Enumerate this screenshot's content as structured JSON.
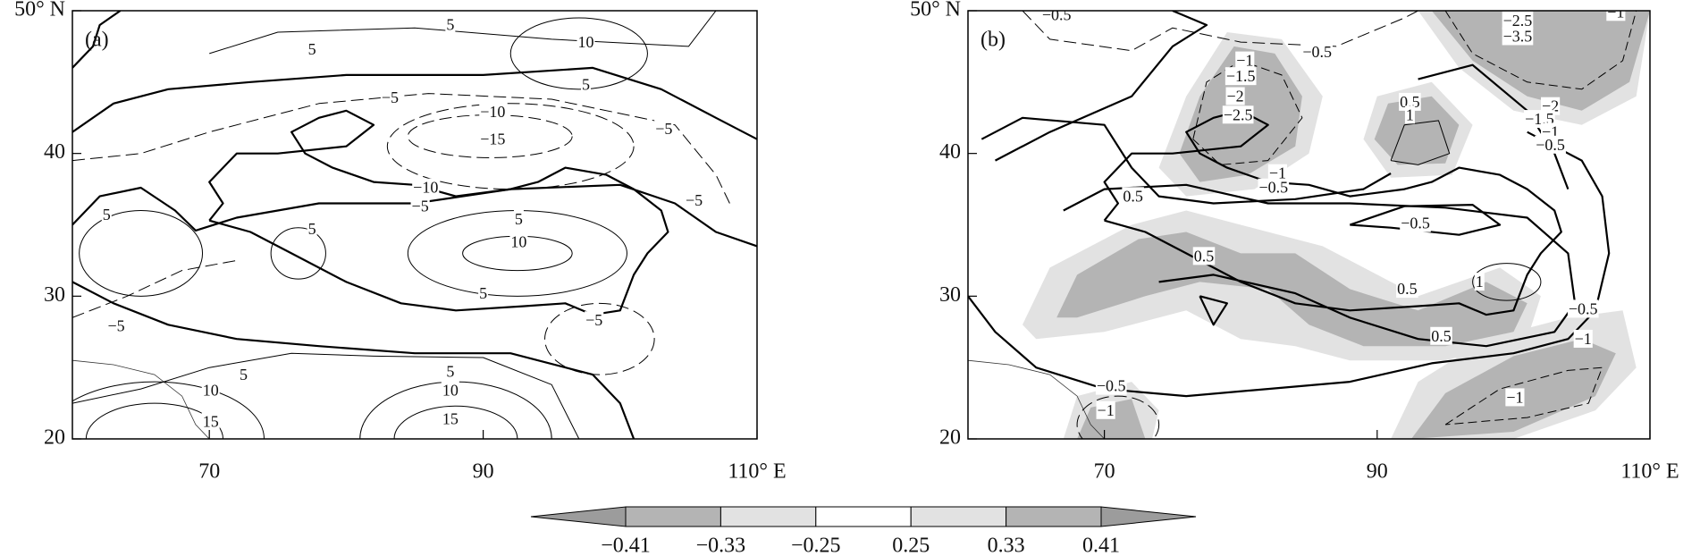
{
  "chart_data": [
    {
      "type": "contour",
      "label": "(a)",
      "xlim": [
        60,
        110
      ],
      "ylim": [
        20,
        50
      ],
      "xticks": [
        70,
        90,
        {
          "value": 110,
          "label": "110° E"
        }
      ],
      "yticks": [
        20,
        30,
        40,
        {
          "value": 50,
          "label": "50° N"
        }
      ],
      "contour_labels": [
        5,
        10,
        5,
        5,
        {
          "value": -5,
          "label": "−5"
        },
        {
          "value": -10,
          "label": "−10"
        },
        {
          "value": -15,
          "label": "−15"
        },
        {
          "value": -5,
          "label": "−5"
        },
        {
          "value": -10,
          "label": "−10"
        },
        {
          "value": -5,
          "label": "−5"
        },
        {
          "value": -5,
          "label": "−5"
        },
        5,
        5,
        5,
        10,
        5,
        {
          "value": -5,
          "label": "−5"
        },
        {
          "value": -5,
          "label": "−5"
        },
        5,
        10,
        15,
        5,
        10,
        15
      ]
    },
    {
      "type": "contour",
      "label": "(b)",
      "xlim": [
        60,
        110
      ],
      "ylim": [
        20,
        50
      ],
      "xticks": [
        70,
        90,
        {
          "value": 110,
          "label": "110° E"
        }
      ],
      "yticks": [
        20,
        30,
        40,
        {
          "value": 50,
          "label": "50° N"
        }
      ],
      "contour_labels": [
        {
          "value": -0.5,
          "label": "−0.5"
        },
        {
          "value": -2.5,
          "label": "−2.5"
        },
        {
          "value": -3.5,
          "label": "−3.5"
        },
        {
          "value": -1,
          "label": "−1"
        },
        {
          "value": -1,
          "label": "−1"
        },
        {
          "value": -0.5,
          "label": "−0.5"
        },
        {
          "value": -1.5,
          "label": "−1.5"
        },
        {
          "value": -2,
          "label": "−2"
        },
        {
          "value": -2.5,
          "label": "−2.5"
        },
        0.5,
        1,
        {
          "value": -2,
          "label": "−2"
        },
        {
          "value": -1.5,
          "label": "−1.5"
        },
        {
          "value": -1,
          "label": "−1"
        },
        {
          "value": -0.5,
          "label": "−0.5"
        },
        {
          "value": -1,
          "label": "−1"
        },
        {
          "value": -0.5,
          "label": "−0.5"
        },
        0.5,
        {
          "value": -0.5,
          "label": "−0.5"
        },
        0.5,
        1,
        0.5,
        0.5,
        {
          "value": -0.5,
          "label": "−0.5"
        },
        {
          "value": -1,
          "label": "−1"
        },
        {
          "value": -0.5,
          "label": "−0.5"
        },
        {
          "value": -1,
          "label": "−1"
        },
        {
          "value": -1,
          "label": "−1"
        }
      ]
    }
  ],
  "colorbar": {
    "ticks": [
      {
        "value": -0.41,
        "label": "−0.41"
      },
      {
        "value": -0.33,
        "label": "−0.33"
      },
      {
        "value": -0.25,
        "label": "−0.25"
      },
      0.25,
      0.33,
      0.41
    ],
    "colors": [
      "#9c9c9c",
      "#b4b4b4",
      "#e2e2e2",
      "#ffffff",
      "#e2e2e2",
      "#b4b4b4",
      "#9c9c9c"
    ]
  }
}
